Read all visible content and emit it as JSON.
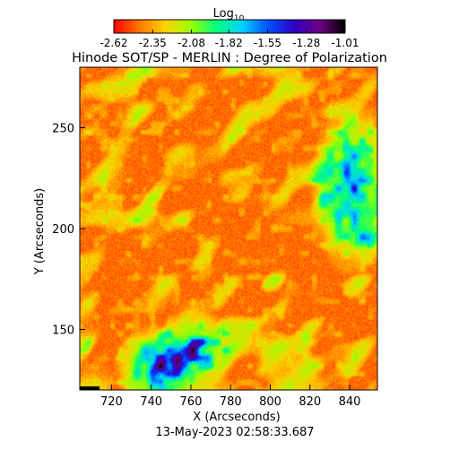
{
  "colorbar": {
    "label_main": "Log",
    "label_sub": "10",
    "ticks": [
      "-2.62",
      "-2.35",
      "-2.08",
      "-1.82",
      "-1.55",
      "-1.28",
      "-1.01"
    ],
    "range": [
      -2.62,
      -1.01
    ],
    "colormap": [
      "#ff0000",
      "#ff7800",
      "#ffd200",
      "#9bff00",
      "#00ff7d",
      "#00d2ff",
      "#0050ff",
      "#2d00c8",
      "#6e0082",
      "#000000"
    ]
  },
  "chart_data": {
    "type": "heatmap",
    "title": "Hinode SOT/SP - MERLIN : Degree of Polarization",
    "xlabel": "X (Arcseconds)",
    "ylabel": "Y (Arcseconds)",
    "x_ticks": [
      720,
      740,
      760,
      780,
      800,
      820,
      840
    ],
    "y_ticks": [
      150,
      200,
      250
    ],
    "xlim": [
      704,
      854
    ],
    "ylim": [
      120,
      280
    ],
    "value_range": [
      -2.62,
      -1.01
    ],
    "features": [
      {
        "x": 762,
        "y": 140,
        "level": "high"
      },
      {
        "x": 842,
        "y": 220,
        "level": "high"
      },
      {
        "x": 742,
        "y": 132,
        "level": "high"
      }
    ]
  },
  "timestamp": "13-May-2023 02:58:33.687"
}
